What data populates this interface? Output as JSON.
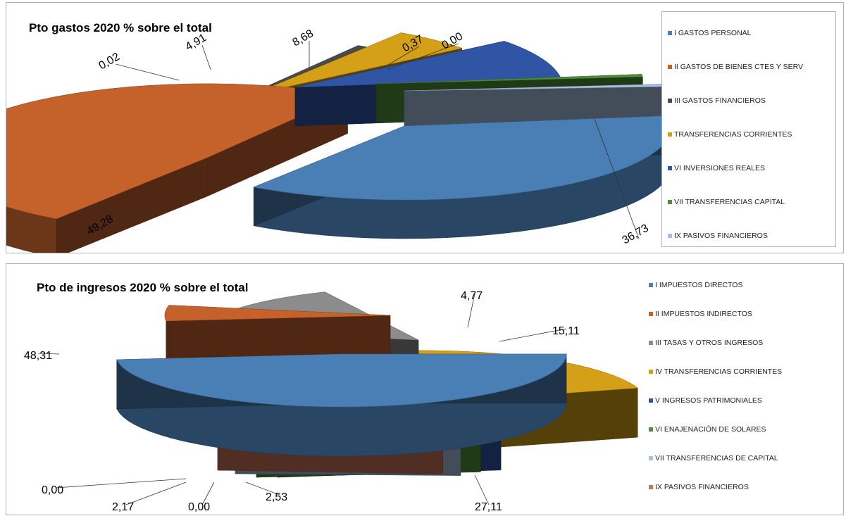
{
  "chart_data": [
    {
      "type": "pie",
      "title": "Pto gastos 2020 % sobre el total",
      "categories": [
        "I GASTOS PERSONAL",
        "II GASTOS DE BIENES CTES Y SERV",
        "III GASTOS FINANCIEROS",
        "TRANSFERENCIAS CORRIENTES",
        "VI INVERSIONES REALES",
        "VII TRANSFERENCIAS CAPITAL",
        "IX PASIVOS FINANCIEROS"
      ],
      "values": [
        36.73,
        49.28,
        0.02,
        4.91,
        8.68,
        0.37,
        0.0
      ],
      "data_labels": [
        "36,73",
        "49,28",
        "0,02",
        "4,91",
        "8,68",
        "0,37",
        "0,00"
      ],
      "colors": [
        "#4a7fb5",
        "#c5622c",
        "#4b4b4b",
        "#d4a017",
        "#2f55a4",
        "#4f8f3a",
        "#a7c1e0"
      ],
      "legend": "right"
    },
    {
      "type": "pie",
      "title": "Pto de ingresos 2020 % sobre el total",
      "categories": [
        "I IMPUESTOS DIRECTOS",
        "II IMPUESTOS INDIRECTOS",
        "III TASAS Y OTROS INGRESOS",
        "IV TRANSFERENCIAS CORRIENTES",
        "V INGRESOS PATRIMONIALES",
        "VI ENAJENACIÓN DE SOLARES",
        "VII TRANSFERENCIAS DE CAPITAL",
        "IX PASIVOS FINANCIEROS"
      ],
      "values": [
        48.31,
        4.77,
        15.11,
        27.11,
        2.53,
        0.0,
        2.17,
        0.0
      ],
      "data_labels": [
        "48,31",
        "4,77",
        "15,11",
        "27,11",
        "2,53",
        "0,00",
        "2,17",
        "0,00"
      ],
      "colors": [
        "#4a7fb5",
        "#c5622c",
        "#8c8c8c",
        "#d4a017",
        "#2f55a4",
        "#4f8f3a",
        "#a7c1e0",
        "#c9745a"
      ],
      "legend": "right"
    }
  ]
}
